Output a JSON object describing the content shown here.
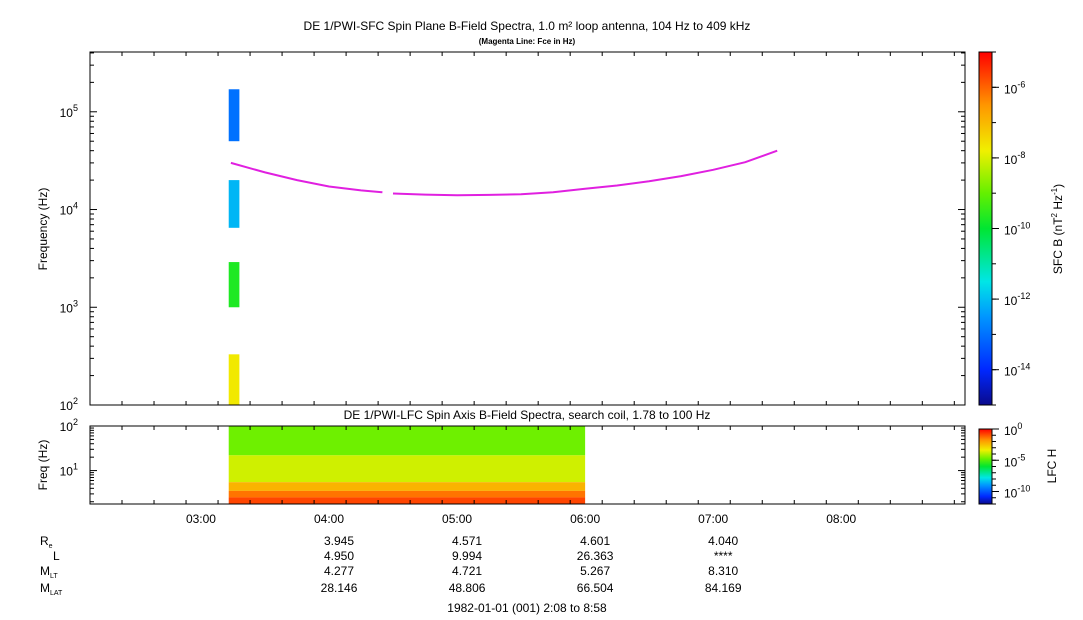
{
  "chart_data": [
    {
      "type": "heatmap",
      "title": "DE 1/PWI-SFC  Spin Plane B-Field Spectra, 1.0 m² loop antenna, 104 Hz to 409 kHz",
      "subtitle": "(Magenta Line: Fce in Hz)",
      "ylabel": "Frequency (Hz)",
      "y_scale": "log",
      "ylim": [
        100,
        409000
      ],
      "y_ticks": [
        {
          "value": 100,
          "base": "10",
          "exp": "2"
        },
        {
          "value": 1000,
          "base": "10",
          "exp": "3"
        },
        {
          "value": 10000,
          "base": "10",
          "exp": "4"
        },
        {
          "value": 100000,
          "base": "10",
          "exp": "5"
        }
      ],
      "xlim": [
        "02:08",
        "08:58"
      ],
      "colorbar": {
        "label": "SFC B (nT² Hz⁻¹)",
        "scale": "log",
        "range": [
          1e-15,
          1e-05
        ],
        "ticks": [
          {
            "value": 1e-06,
            "base": "10",
            "exp": "-6"
          },
          {
            "value": 1e-08,
            "base": "10",
            "exp": "-8"
          },
          {
            "value": 1e-10,
            "base": "10",
            "exp": "-10"
          },
          {
            "value": 1e-12,
            "base": "10",
            "exp": "-12"
          },
          {
            "value": 1e-14,
            "base": "10",
            "exp": "-14"
          }
        ]
      },
      "spectra_column": {
        "time_start": "03:13",
        "time_end": "03:18",
        "segments": [
          {
            "f_low": 100,
            "f_high": 330,
            "level": 2e-08
          },
          {
            "f_low": 1000,
            "f_high": 2900,
            "level": 2e-10
          },
          {
            "f_low": 6500,
            "f_high": 20000,
            "level": 8e-13
          },
          {
            "f_low": 50000,
            "f_high": 170000,
            "level": 1e-13
          }
        ]
      },
      "series": [
        {
          "name": "Fce",
          "color": "#e020e0",
          "points": [
            [
              "03:14",
              30000
            ],
            [
              "03:30",
              24000
            ],
            [
              "03:45",
              20000
            ],
            [
              "04:00",
              17200
            ],
            [
              "04:15",
              15700
            ],
            [
              "04:25",
              15000
            ],
            [
              "04:30",
              14600
            ],
            [
              "04:45",
              14200
            ],
            [
              "05:00",
              14000
            ],
            [
              "05:15",
              14100
            ],
            [
              "05:30",
              14300
            ],
            [
              "05:45",
              15000
            ],
            [
              "06:00",
              16300
            ],
            [
              "06:15",
              17600
            ],
            [
              "06:30",
              19500
            ],
            [
              "06:45",
              22000
            ],
            [
              "07:00",
              25500
            ],
            [
              "07:15",
              30500
            ],
            [
              "07:30",
              40000
            ]
          ],
          "gap": [
            "04:25",
            "04:31"
          ]
        }
      ]
    },
    {
      "type": "heatmap",
      "title": "DE 1/PWI-LFC  Spin Axis B-Field Spectra, search coil, 1.78 to 100 Hz",
      "ylabel": "Freq (Hz)",
      "y_scale": "log",
      "ylim": [
        1.78,
        100
      ],
      "y_ticks": [
        {
          "value": 10,
          "base": "10",
          "exp": "1"
        },
        {
          "value": 100,
          "base": "10",
          "exp": "2"
        }
      ],
      "xlim": [
        "02:08",
        "08:58"
      ],
      "colorbar": {
        "label": "LFC H",
        "scale": "log",
        "range": [
          1e-12,
          1
        ],
        "ticks": [
          {
            "value": 1,
            "base": "10",
            "exp": "0"
          },
          {
            "value": 1e-05,
            "base": "10",
            "exp": "-5"
          },
          {
            "value": 1e-10,
            "base": "10",
            "exp": "-10"
          }
        ]
      },
      "data_block": {
        "time_start": "03:13",
        "time_end": "06:00",
        "bands": [
          {
            "f_low": 22,
            "f_high": 100,
            "level": 2e-05
          },
          {
            "f_low": 5.5,
            "f_high": 22,
            "level": 0.0002
          },
          {
            "f_low": 3.5,
            "f_high": 5.5,
            "level": 0.005
          },
          {
            "f_low": 2.5,
            "f_high": 3.5,
            "level": 0.04
          },
          {
            "f_low": 1.78,
            "f_high": 2.5,
            "level": 0.15
          }
        ]
      }
    }
  ],
  "x_ticks": [
    "03:00",
    "04:00",
    "05:00",
    "06:00",
    "07:00",
    "08:00"
  ],
  "ephemeris": {
    "rows": [
      {
        "label": "R",
        "sub": "e",
        "values": [
          "3.945",
          "4.571",
          "4.601",
          "4.040"
        ]
      },
      {
        "label": "L",
        "sub": "",
        "values": [
          "4.950",
          "9.994",
          "26.363",
          "****"
        ]
      },
      {
        "label": "M",
        "sub": "LT",
        "values": [
          "4.277",
          "4.721",
          "5.267",
          "8.310"
        ]
      },
      {
        "label": "M",
        "sub": "LAT",
        "values": [
          "28.146",
          "48.806",
          "66.504",
          "84.169"
        ]
      }
    ],
    "times": [
      "04:00",
      "05:00",
      "06:00",
      "07:00"
    ]
  },
  "footer": "1982-01-01 (001) 2:08 to 8:58"
}
